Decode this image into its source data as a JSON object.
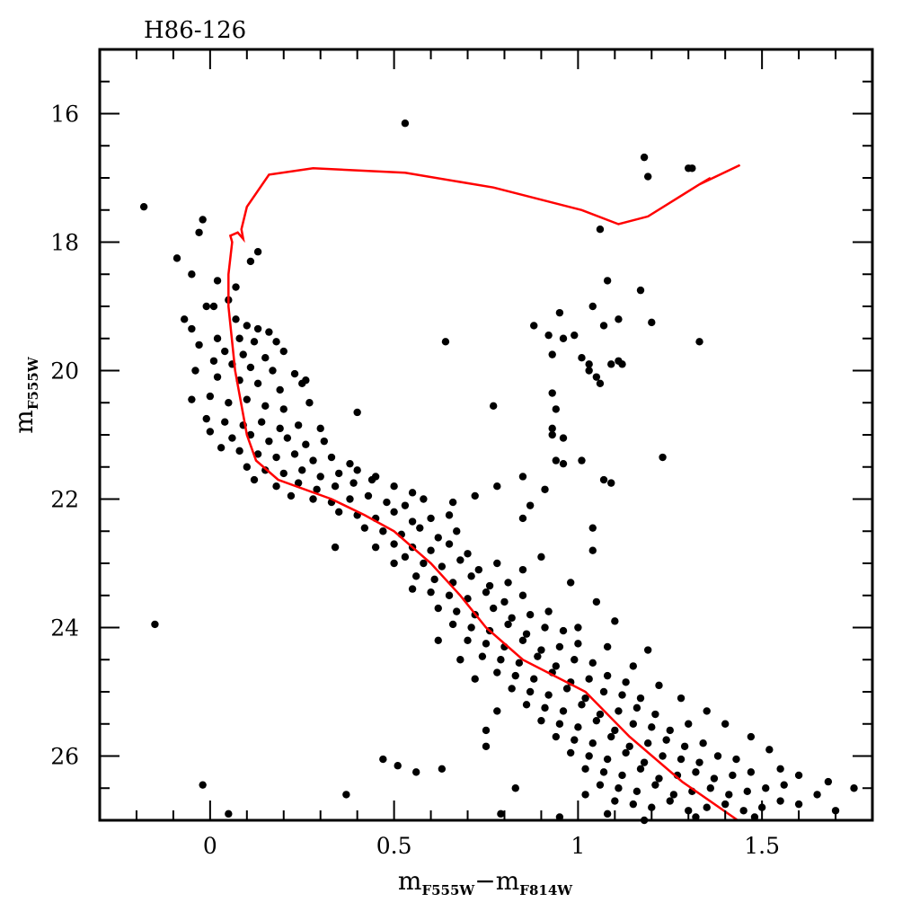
{
  "chart_data": {
    "type": "scatter",
    "title": "H86-126",
    "xlabel": {
      "main1": "m",
      "sub1": "F555W",
      "sep": "−",
      "main2": "m",
      "sub2": "F814W"
    },
    "ylabel": {
      "main": "m",
      "sub": "F555W"
    },
    "xlim": [
      -0.3,
      1.8
    ],
    "ylim": [
      27,
      15
    ],
    "y_inverted": true,
    "x_ticks": [
      0,
      0.5,
      1,
      1.5
    ],
    "x_tick_labels": [
      "0",
      "0.5",
      "1",
      "1.5"
    ],
    "x_minor_step": 0.1,
    "y_ticks": [
      16,
      18,
      20,
      22,
      24,
      26
    ],
    "y_tick_labels": [
      "16",
      "18",
      "20",
      "22",
      "24",
      "26"
    ],
    "y_minor_step": 0.5,
    "grid": false,
    "colors": {
      "points": "#000000",
      "isochrone": "#ff0000",
      "axes": "#000000"
    },
    "isochrone": [
      [
        1.434,
        27.0
      ],
      [
        1.283,
        26.4
      ],
      [
        1.14,
        25.7
      ],
      [
        1.02,
        25.0
      ],
      [
        0.85,
        24.5
      ],
      [
        0.75,
        24.0
      ],
      [
        0.68,
        23.5
      ],
      [
        0.6,
        23.0
      ],
      [
        0.5,
        22.5
      ],
      [
        0.42,
        22.25
      ],
      [
        0.33,
        22.0
      ],
      [
        0.185,
        21.7
      ],
      [
        0.125,
        21.4
      ],
      [
        0.1,
        21.0
      ],
      [
        0.068,
        20.0
      ],
      [
        0.05,
        19.0
      ],
      [
        0.05,
        18.5
      ],
      [
        0.06,
        18.0
      ],
      [
        0.055,
        17.9
      ],
      [
        0.075,
        17.85
      ],
      [
        0.09,
        17.95
      ],
      [
        0.085,
        17.8
      ],
      [
        0.1,
        17.45
      ],
      [
        0.16,
        16.95
      ],
      [
        0.28,
        16.85
      ],
      [
        0.53,
        16.92
      ],
      [
        0.77,
        17.15
      ],
      [
        1.01,
        17.5
      ],
      [
        1.11,
        17.72
      ],
      [
        1.19,
        17.6
      ],
      [
        1.33,
        17.1
      ],
      [
        1.44,
        16.8
      ],
      [
        1.33,
        17.1
      ],
      [
        1.36,
        17.0
      ]
    ],
    "points": [
      [
        0.53,
        16.15
      ],
      [
        1.18,
        16.68
      ],
      [
        1.19,
        16.98
      ],
      [
        1.3,
        16.85
      ],
      [
        1.31,
        16.85
      ],
      [
        -0.18,
        17.45
      ],
      [
        1.06,
        17.8
      ],
      [
        -0.02,
        17.65
      ],
      [
        -0.03,
        17.85
      ],
      [
        -0.09,
        18.25
      ],
      [
        0.11,
        18.3
      ],
      [
        0.13,
        18.15
      ],
      [
        1.08,
        18.6
      ],
      [
        1.17,
        18.75
      ],
      [
        0.88,
        19.3
      ],
      [
        0.95,
        19.1
      ],
      [
        1.04,
        19.0
      ],
      [
        1.07,
        19.3
      ],
      [
        1.11,
        19.2
      ],
      [
        1.2,
        19.25
      ],
      [
        0.92,
        19.45
      ],
      [
        0.96,
        19.5
      ],
      [
        0.99,
        19.45
      ],
      [
        0.93,
        19.75
      ],
      [
        1.33,
        19.55
      ],
      [
        0.64,
        19.55
      ],
      [
        1.01,
        19.8
      ],
      [
        1.03,
        19.9
      ],
      [
        1.05,
        20.1
      ],
      [
        1.06,
        20.2
      ],
      [
        1.03,
        20.0
      ],
      [
        1.11,
        19.85
      ],
      [
        1.12,
        19.9
      ],
      [
        1.09,
        19.9
      ],
      [
        0.93,
        20.35
      ],
      [
        0.94,
        20.6
      ],
      [
        0.77,
        20.55
      ],
      [
        0.93,
        20.9
      ],
      [
        0.93,
        21.0
      ],
      [
        0.96,
        21.05
      ],
      [
        0.4,
        20.65
      ],
      [
        0.26,
        20.15
      ],
      [
        0.94,
        21.4
      ],
      [
        0.96,
        21.45
      ],
      [
        1.01,
        21.4
      ],
      [
        1.07,
        21.7
      ],
      [
        1.09,
        21.75
      ],
      [
        1.23,
        21.35
      ],
      [
        0.85,
        21.65
      ],
      [
        0.91,
        21.85
      ],
      [
        0.87,
        22.1
      ],
      [
        1.04,
        22.45
      ],
      [
        1.04,
        22.8
      ],
      [
        0.34,
        22.75
      ],
      [
        -0.15,
        23.95
      ],
      [
        1.19,
        24.35
      ],
      [
        -0.02,
        26.45
      ],
      [
        0.05,
        26.9
      ],
      [
        0.37,
        26.6
      ],
      [
        0.47,
        26.05
      ],
      [
        0.51,
        26.15
      ],
      [
        0.56,
        26.25
      ],
      [
        0.63,
        26.2
      ],
      [
        0.75,
        25.6
      ],
      [
        0.75,
        25.85
      ],
      [
        0.83,
        26.5
      ],
      [
        0.79,
        26.9
      ],
      [
        0.95,
        26.95
      ],
      [
        -0.05,
        18.5
      ],
      [
        0.02,
        18.6
      ],
      [
        0.07,
        18.7
      ],
      [
        0.05,
        18.9
      ],
      [
        -0.01,
        19.0
      ],
      [
        0.01,
        19.0
      ],
      [
        0.07,
        19.2
      ],
      [
        -0.07,
        19.2
      ],
      [
        -0.05,
        19.35
      ],
      [
        0.1,
        19.3
      ],
      [
        0.13,
        19.35
      ],
      [
        0.16,
        19.4
      ],
      [
        0.02,
        19.5
      ],
      [
        0.08,
        19.5
      ],
      [
        0.12,
        19.55
      ],
      [
        0.18,
        19.55
      ],
      [
        -0.03,
        19.6
      ],
      [
        0.04,
        19.7
      ],
      [
        0.09,
        19.75
      ],
      [
        0.15,
        19.8
      ],
      [
        0.2,
        19.7
      ],
      [
        0.01,
        19.85
      ],
      [
        0.06,
        19.9
      ],
      [
        0.11,
        19.95
      ],
      [
        0.17,
        20.0
      ],
      [
        0.23,
        20.05
      ],
      [
        -0.04,
        20.0
      ],
      [
        0.02,
        20.1
      ],
      [
        0.08,
        20.15
      ],
      [
        0.13,
        20.2
      ],
      [
        0.19,
        20.3
      ],
      [
        0.25,
        20.2
      ],
      [
        -0.05,
        20.45
      ],
      [
        0.0,
        20.4
      ],
      [
        0.05,
        20.5
      ],
      [
        0.1,
        20.45
      ],
      [
        0.15,
        20.55
      ],
      [
        0.2,
        20.6
      ],
      [
        0.27,
        20.5
      ],
      [
        -0.01,
        20.75
      ],
      [
        0.04,
        20.8
      ],
      [
        0.09,
        20.85
      ],
      [
        0.14,
        20.8
      ],
      [
        0.19,
        20.9
      ],
      [
        0.24,
        20.85
      ],
      [
        0.3,
        20.9
      ],
      [
        0.0,
        20.95
      ],
      [
        0.06,
        21.05
      ],
      [
        0.11,
        21.0
      ],
      [
        0.16,
        21.1
      ],
      [
        0.21,
        21.05
      ],
      [
        0.26,
        21.15
      ],
      [
        0.31,
        21.1
      ],
      [
        0.03,
        21.2
      ],
      [
        0.08,
        21.25
      ],
      [
        0.13,
        21.3
      ],
      [
        0.18,
        21.35
      ],
      [
        0.23,
        21.3
      ],
      [
        0.28,
        21.4
      ],
      [
        0.33,
        21.35
      ],
      [
        0.38,
        21.45
      ],
      [
        0.1,
        21.5
      ],
      [
        0.15,
        21.55
      ],
      [
        0.2,
        21.6
      ],
      [
        0.25,
        21.55
      ],
      [
        0.3,
        21.65
      ],
      [
        0.35,
        21.6
      ],
      [
        0.4,
        21.55
      ],
      [
        0.45,
        21.65
      ],
      [
        0.12,
        21.7
      ],
      [
        0.18,
        21.8
      ],
      [
        0.24,
        21.75
      ],
      [
        0.29,
        21.85
      ],
      [
        0.34,
        21.8
      ],
      [
        0.39,
        21.75
      ],
      [
        0.44,
        21.7
      ],
      [
        0.5,
        21.8
      ],
      [
        0.55,
        21.9
      ],
      [
        0.22,
        21.95
      ],
      [
        0.28,
        22.0
      ],
      [
        0.33,
        22.05
      ],
      [
        0.38,
        22.0
      ],
      [
        0.43,
        21.95
      ],
      [
        0.48,
        22.05
      ],
      [
        0.53,
        22.1
      ],
      [
        0.58,
        22.0
      ],
      [
        0.35,
        22.2
      ],
      [
        0.4,
        22.25
      ],
      [
        0.45,
        22.3
      ],
      [
        0.5,
        22.2
      ],
      [
        0.55,
        22.35
      ],
      [
        0.6,
        22.3
      ],
      [
        0.65,
        22.25
      ],
      [
        0.42,
        22.45
      ],
      [
        0.47,
        22.5
      ],
      [
        0.52,
        22.55
      ],
      [
        0.57,
        22.45
      ],
      [
        0.62,
        22.6
      ],
      [
        0.67,
        22.5
      ],
      [
        0.5,
        22.7
      ],
      [
        0.55,
        22.75
      ],
      [
        0.6,
        22.8
      ],
      [
        0.65,
        22.7
      ],
      [
        0.7,
        22.85
      ],
      [
        0.53,
        22.9
      ],
      [
        0.58,
        23.0
      ],
      [
        0.63,
        23.05
      ],
      [
        0.68,
        22.95
      ],
      [
        0.73,
        23.1
      ],
      [
        0.78,
        23.0
      ],
      [
        0.56,
        23.2
      ],
      [
        0.61,
        23.25
      ],
      [
        0.66,
        23.3
      ],
      [
        0.71,
        23.2
      ],
      [
        0.76,
        23.35
      ],
      [
        0.81,
        23.3
      ],
      [
        0.6,
        23.45
      ],
      [
        0.65,
        23.5
      ],
      [
        0.7,
        23.55
      ],
      [
        0.75,
        23.45
      ],
      [
        0.8,
        23.6
      ],
      [
        0.85,
        23.5
      ],
      [
        0.62,
        23.7
      ],
      [
        0.67,
        23.75
      ],
      [
        0.72,
        23.8
      ],
      [
        0.77,
        23.7
      ],
      [
        0.82,
        23.85
      ],
      [
        0.87,
        23.8
      ],
      [
        0.92,
        23.75
      ],
      [
        0.66,
        23.95
      ],
      [
        0.71,
        24.0
      ],
      [
        0.76,
        24.05
      ],
      [
        0.81,
        23.95
      ],
      [
        0.86,
        24.1
      ],
      [
        0.91,
        24.0
      ],
      [
        0.96,
        24.05
      ],
      [
        0.7,
        24.2
      ],
      [
        0.75,
        24.25
      ],
      [
        0.8,
        24.3
      ],
      [
        0.85,
        24.2
      ],
      [
        0.9,
        24.35
      ],
      [
        0.95,
        24.3
      ],
      [
        1.0,
        24.25
      ],
      [
        0.74,
        24.45
      ],
      [
        0.79,
        24.5
      ],
      [
        0.84,
        24.55
      ],
      [
        0.89,
        24.45
      ],
      [
        0.94,
        24.6
      ],
      [
        0.99,
        24.5
      ],
      [
        1.04,
        24.55
      ],
      [
        0.78,
        24.7
      ],
      [
        0.83,
        24.75
      ],
      [
        0.88,
        24.8
      ],
      [
        0.93,
        24.7
      ],
      [
        0.98,
        24.85
      ],
      [
        1.03,
        24.8
      ],
      [
        1.08,
        24.75
      ],
      [
        1.13,
        24.85
      ],
      [
        0.82,
        24.95
      ],
      [
        0.87,
        25.0
      ],
      [
        0.92,
        25.05
      ],
      [
        0.97,
        24.95
      ],
      [
        1.02,
        25.1
      ],
      [
        1.07,
        25.0
      ],
      [
        1.12,
        25.05
      ],
      [
        1.17,
        25.1
      ],
      [
        0.86,
        25.2
      ],
      [
        0.91,
        25.25
      ],
      [
        0.96,
        25.3
      ],
      [
        1.01,
        25.2
      ],
      [
        1.06,
        25.35
      ],
      [
        1.11,
        25.3
      ],
      [
        1.16,
        25.25
      ],
      [
        1.21,
        25.35
      ],
      [
        0.9,
        25.45
      ],
      [
        0.95,
        25.5
      ],
      [
        1.0,
        25.55
      ],
      [
        1.05,
        25.45
      ],
      [
        1.1,
        25.6
      ],
      [
        1.15,
        25.5
      ],
      [
        1.2,
        25.55
      ],
      [
        1.25,
        25.6
      ],
      [
        1.3,
        25.5
      ],
      [
        0.94,
        25.7
      ],
      [
        0.99,
        25.75
      ],
      [
        1.04,
        25.8
      ],
      [
        1.09,
        25.7
      ],
      [
        1.14,
        25.85
      ],
      [
        1.19,
        25.8
      ],
      [
        1.24,
        25.75
      ],
      [
        1.29,
        25.85
      ],
      [
        1.34,
        25.8
      ],
      [
        0.98,
        25.95
      ],
      [
        1.03,
        26.0
      ],
      [
        1.08,
        26.05
      ],
      [
        1.13,
        25.95
      ],
      [
        1.18,
        26.1
      ],
      [
        1.23,
        26.0
      ],
      [
        1.28,
        26.05
      ],
      [
        1.33,
        26.1
      ],
      [
        1.38,
        26.0
      ],
      [
        1.43,
        26.05
      ],
      [
        1.02,
        26.2
      ],
      [
        1.07,
        26.25
      ],
      [
        1.12,
        26.3
      ],
      [
        1.17,
        26.2
      ],
      [
        1.22,
        26.35
      ],
      [
        1.27,
        26.3
      ],
      [
        1.32,
        26.25
      ],
      [
        1.37,
        26.35
      ],
      [
        1.42,
        26.3
      ],
      [
        1.47,
        26.25
      ],
      [
        1.06,
        26.45
      ],
      [
        1.11,
        26.5
      ],
      [
        1.16,
        26.55
      ],
      [
        1.21,
        26.45
      ],
      [
        1.26,
        26.6
      ],
      [
        1.31,
        26.55
      ],
      [
        1.36,
        26.5
      ],
      [
        1.41,
        26.6
      ],
      [
        1.46,
        26.55
      ],
      [
        1.51,
        26.5
      ],
      [
        1.56,
        26.45
      ],
      [
        1.1,
        26.7
      ],
      [
        1.15,
        26.75
      ],
      [
        1.2,
        26.8
      ],
      [
        1.25,
        26.7
      ],
      [
        1.3,
        26.85
      ],
      [
        1.35,
        26.8
      ],
      [
        1.4,
        26.75
      ],
      [
        1.45,
        26.85
      ],
      [
        1.5,
        26.8
      ],
      [
        1.55,
        26.7
      ],
      [
        1.6,
        26.75
      ],
      [
        1.65,
        26.6
      ],
      [
        1.7,
        26.85
      ],
      [
        1.75,
        26.5
      ],
      [
        1.68,
        26.4
      ],
      [
        1.6,
        26.3
      ],
      [
        1.55,
        26.2
      ],
      [
        1.52,
        25.9
      ],
      [
        1.47,
        25.7
      ],
      [
        1.4,
        25.5
      ],
      [
        1.35,
        25.3
      ],
      [
        1.28,
        25.1
      ],
      [
        1.22,
        24.9
      ],
      [
        1.15,
        24.6
      ],
      [
        1.08,
        24.3
      ],
      [
        1.0,
        24.0
      ],
      [
        0.55,
        23.4
      ],
      [
        0.5,
        23.0
      ],
      [
        0.45,
        22.75
      ],
      [
        0.9,
        22.9
      ],
      [
        0.85,
        23.1
      ],
      [
        1.1,
        23.9
      ],
      [
        1.05,
        23.6
      ],
      [
        0.98,
        23.3
      ],
      [
        0.62,
        24.2
      ],
      [
        0.68,
        24.5
      ],
      [
        0.72,
        24.8
      ],
      [
        0.78,
        25.3
      ],
      [
        1.02,
        26.6
      ],
      [
        1.08,
        26.9
      ],
      [
        1.18,
        27.0
      ],
      [
        1.32,
        26.95
      ],
      [
        1.48,
        26.95
      ],
      [
        0.78,
        21.8
      ],
      [
        0.85,
        22.3
      ],
      [
        0.72,
        21.95
      ],
      [
        0.66,
        22.05
      ]
    ]
  }
}
